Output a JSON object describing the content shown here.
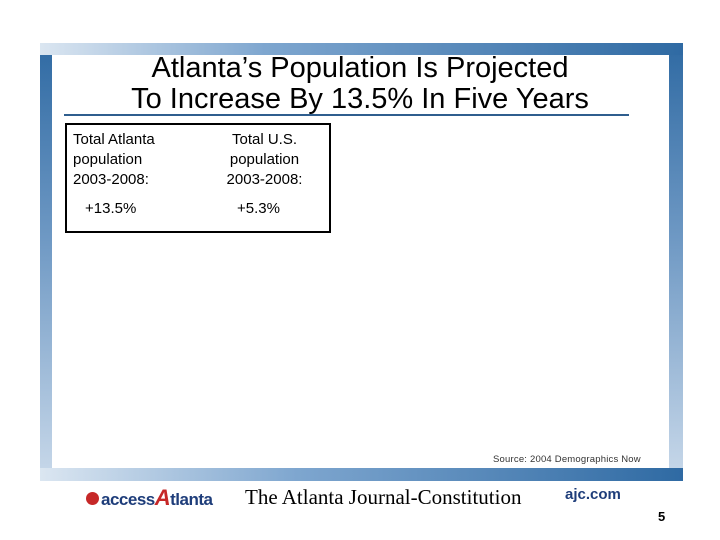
{
  "slide": {
    "title_line1": "Atlanta’s Population Is Projected",
    "title_line2": "To Increase By 13.5% In Five Years",
    "page_number": "5"
  },
  "stats": {
    "atlanta": {
      "label_line1": "Total Atlanta",
      "label_line2": "population",
      "label_line3": "2003-2008:",
      "value": "+13.5%"
    },
    "us": {
      "label_line1": "Total U.S.",
      "label_line2": "population",
      "label_line3": "2003-2008:",
      "value": "+5.3%"
    }
  },
  "source": "Source: 2004 Demographics Now",
  "footer": {
    "access_prefix": "access",
    "access_letter": "A",
    "access_suffix": "tlanta",
    "newspaper": "The Atlanta Journal-Constitution",
    "site": "ajc.com"
  },
  "colors": {
    "frame_blue": "#2f6aa3",
    "brand_red": "#c62828",
    "brand_navy": "#1e3d7a"
  }
}
